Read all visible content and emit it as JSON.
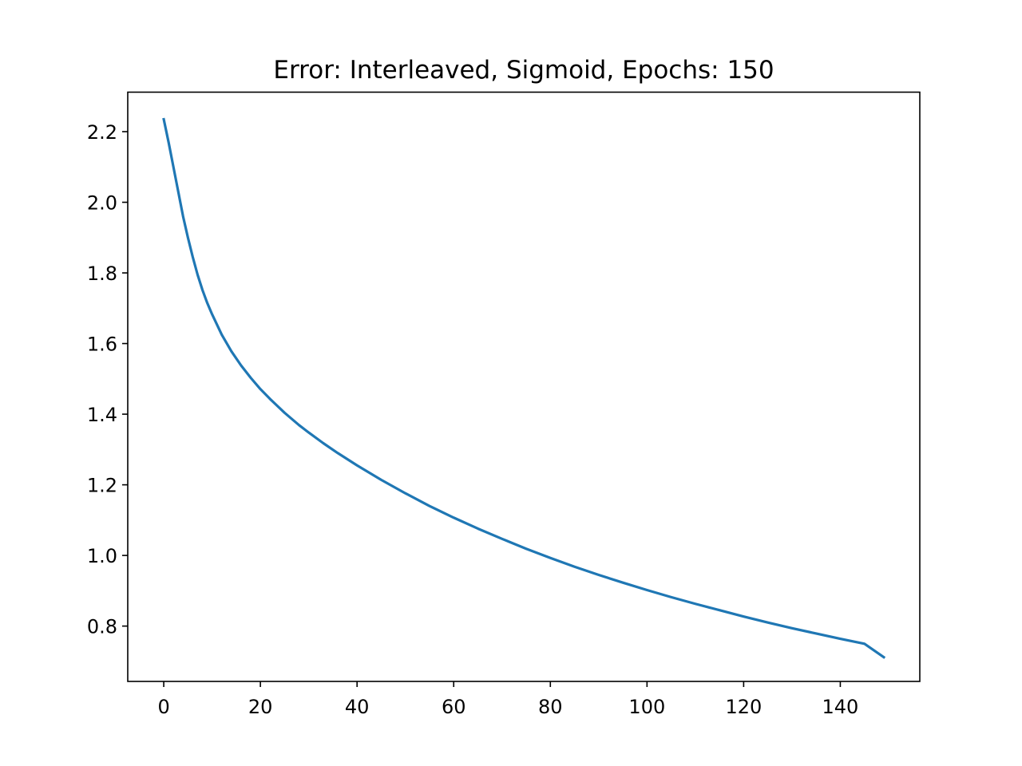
{
  "chart_data": {
    "type": "line",
    "title": "Error: Interleaved, Sigmoid, Epochs: 150",
    "xlabel": "",
    "ylabel": "",
    "xlim": [
      -7.45,
      156.45
    ],
    "ylim": [
      0.6433,
      2.3118
    ],
    "x_ticks": [
      0,
      20,
      40,
      60,
      80,
      100,
      120,
      140
    ],
    "x_tick_labels": [
      "0",
      "20",
      "40",
      "60",
      "80",
      "100",
      "120",
      "140"
    ],
    "y_ticks": [
      0.8,
      1.0,
      1.2,
      1.4,
      1.6,
      1.8,
      2.0,
      2.2
    ],
    "y_tick_labels": [
      "0.8",
      "1.0",
      "1.2",
      "1.4",
      "1.6",
      "1.8",
      "2.0",
      "2.2"
    ],
    "grid": false,
    "series": [
      {
        "color": "#1f77b4",
        "x": [
          0,
          1,
          2,
          3,
          4,
          5,
          6,
          7,
          8,
          9,
          10,
          12,
          14,
          16,
          18,
          20,
          22,
          25,
          28,
          30,
          33,
          36,
          40,
          45,
          50,
          55,
          60,
          65,
          70,
          75,
          80,
          85,
          90,
          95,
          100,
          105,
          110,
          115,
          120,
          125,
          130,
          135,
          140,
          145,
          149
        ],
        "values": [
          2.235,
          2.17,
          2.1,
          2.03,
          1.96,
          1.9,
          1.845,
          1.795,
          1.752,
          1.715,
          1.683,
          1.625,
          1.578,
          1.538,
          1.503,
          1.471,
          1.443,
          1.404,
          1.369,
          1.348,
          1.318,
          1.29,
          1.255,
          1.214,
          1.176,
          1.14,
          1.107,
          1.076,
          1.047,
          1.019,
          0.993,
          0.968,
          0.945,
          0.923,
          0.902,
          0.882,
          0.863,
          0.845,
          0.827,
          0.81,
          0.794,
          0.779,
          0.764,
          0.75,
          0.712
        ]
      }
    ]
  }
}
